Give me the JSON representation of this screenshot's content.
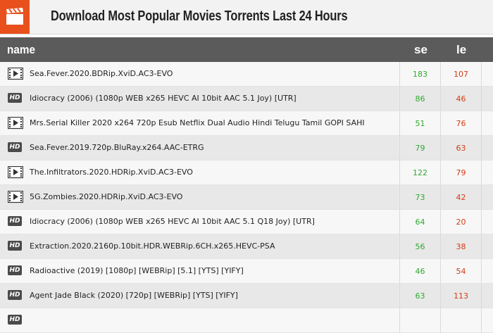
{
  "header": {
    "title": "Download Most Popular Movies Torrents Last 24 Hours",
    "icon": "clapperboard-icon",
    "accent": "#e8501c"
  },
  "columns": {
    "name": "name",
    "se": "se",
    "le": "le"
  },
  "colors": {
    "seeders": "#2fa82f",
    "leechers": "#d63a14",
    "header_bar": "#5b5b5b"
  },
  "rows": [
    {
      "type": "video",
      "name": "Sea.Fever.2020.BDRip.XviD.AC3-EVO",
      "se": "183",
      "le": "107"
    },
    {
      "type": "hd",
      "name": "Idiocracy (2006) (1080p WEB x265 HEVC AI 10bit AAC 5.1 Joy) [UTR]",
      "se": "86",
      "le": "46"
    },
    {
      "type": "video",
      "name": "Mrs.Serial Killer 2020 x264 720p Esub Netflix Dual Audio Hindi Telugu Tamil GOPI SAHI",
      "se": "51",
      "le": "76"
    },
    {
      "type": "hd",
      "name": "Sea.Fever.2019.720p.BluRay.x264.AAC-ETRG",
      "se": "79",
      "le": "63"
    },
    {
      "type": "video",
      "name": "The.Infiltrators.2020.HDRip.XviD.AC3-EVO",
      "se": "122",
      "le": "79"
    },
    {
      "type": "video",
      "name": "5G.Zombies.2020.HDRip.XviD.AC3-EVO",
      "se": "73",
      "le": "42"
    },
    {
      "type": "hd",
      "name": "Idiocracy (2006) (1080p WEB x265 HEVC AI 10bit AAC 5.1 Q18 Joy) [UTR]",
      "se": "64",
      "le": "20"
    },
    {
      "type": "hd",
      "name": "Extraction.2020.2160p.10bit.HDR.WEBRip.6CH.x265.HEVC-PSA",
      "se": "56",
      "le": "38"
    },
    {
      "type": "hd",
      "name": "Radioactive (2019) [1080p] [WEBRip] [5.1] [YTS] [YIFY]",
      "se": "46",
      "le": "54"
    },
    {
      "type": "hd",
      "name": "Agent Jade Black (2020) [720p] [WEBRip] [YTS] [YIFY]",
      "se": "63",
      "le": "113"
    },
    {
      "type": "hd",
      "name": "",
      "se": "",
      "le": ""
    }
  ]
}
